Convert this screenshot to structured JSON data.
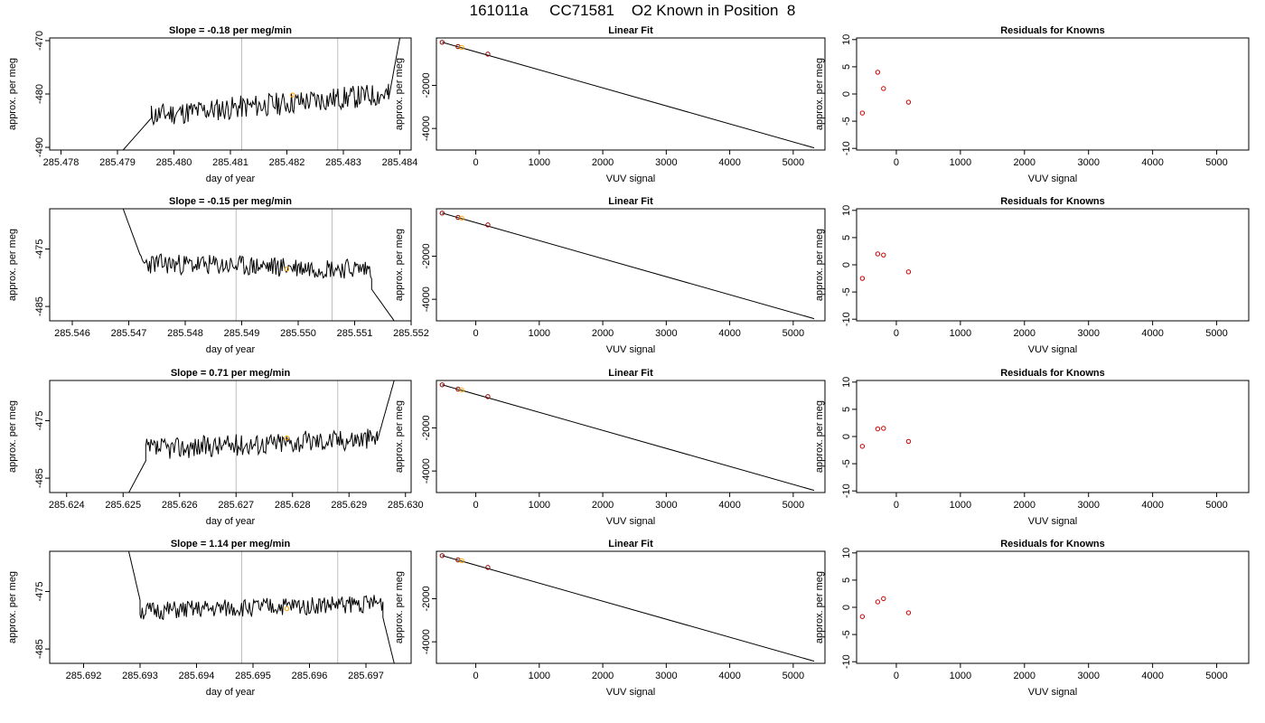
{
  "page": {
    "title": "161011a     CC71581    O2 Known in Position  8"
  },
  "chart_data": [
    {
      "type": "line",
      "title": "Slope =  -0.18  per meg/min",
      "xlabel": "day of year",
      "ylabel": "approx. per meg",
      "xlim": [
        285.4778,
        285.4842
      ],
      "ylim": [
        -490.5,
        -469.5
      ],
      "xticks": [
        285.478,
        285.479,
        285.48,
        285.481,
        285.482,
        285.483,
        285.484
      ],
      "xtick_labels": [
        "285.478",
        "285.479",
        "285.480",
        "285.481",
        "285.482",
        "285.483",
        "285.484"
      ],
      "yticks": [
        -490,
        -480,
        -470
      ],
      "ytick_labels": [
        "-490",
        "-480",
        "-470"
      ],
      "vlines": [
        285.4812,
        285.4829
      ],
      "vline_color": "#bebebe",
      "line_color": "#000000",
      "seed": 11,
      "segments": [
        {
          "x0": 285.4791,
          "x1": 285.4796,
          "y0": -490.5,
          "y1": -484.5
        },
        {
          "x0": 285.4796,
          "x1": 285.4838,
          "y0": -484.0,
          "y1": -480.0
        },
        {
          "x0": 285.4838,
          "x1": 285.484,
          "y0": -481.0,
          "y1": -469.5
        }
      ],
      "noise": 2.2,
      "points": [
        {
          "x": 285.4821,
          "y": -480.2,
          "color": "#ffa500"
        }
      ]
    },
    {
      "type": "scatter",
      "title": "Linear Fit",
      "xlabel": "VUV signal",
      "ylabel": "approx. per meg",
      "xlim": [
        -620,
        5500
      ],
      "ylim": [
        -5000,
        200
      ],
      "xticks": [
        0,
        1000,
        2000,
        3000,
        4000,
        5000
      ],
      "xtick_labels": [
        "0",
        "1000",
        "2000",
        "3000",
        "4000",
        "5000"
      ],
      "yticks": [
        -4000,
        -2000
      ],
      "ytick_labels": [
        "-4000",
        "-2000"
      ],
      "fit_line": {
        "x": [
          -530,
          5330
        ],
        "y": [
          0,
          -4900
        ]
      },
      "points": [
        {
          "x": -530,
          "y": 0,
          "color": "#8b0000"
        },
        {
          "x": -280,
          "y": -200,
          "color": "#8b0000"
        },
        {
          "x": -220,
          "y": -240,
          "color": "#ffa500"
        },
        {
          "x": 190,
          "y": -550,
          "color": "#8b0000"
        }
      ]
    },
    {
      "type": "scatter",
      "title": "Residuals for Knowns",
      "xlabel": "VUV signal",
      "ylabel": "approx. per meg",
      "xlim": [
        -620,
        5500
      ],
      "ylim": [
        -10.3,
        10.3
      ],
      "xticks": [
        0,
        1000,
        2000,
        3000,
        4000,
        5000
      ],
      "xtick_labels": [
        "0",
        "1000",
        "2000",
        "3000",
        "4000",
        "5000"
      ],
      "yticks": [
        -10,
        -5,
        0,
        5,
        10
      ],
      "ytick_labels": [
        "-10",
        "-5",
        "0",
        "5",
        "10"
      ],
      "points": [
        {
          "x": -530,
          "y": -3.5,
          "color": "#cd0000"
        },
        {
          "x": -290,
          "y": 4.0,
          "color": "#cd0000"
        },
        {
          "x": -200,
          "y": 1.0,
          "color": "#cd0000"
        },
        {
          "x": 190,
          "y": -1.5,
          "color": "#cd0000"
        }
      ]
    },
    {
      "type": "line",
      "title": "Slope =  -0.15  per meg/min",
      "xlabel": "day of year",
      "ylabel": "approx. per meg",
      "xlim": [
        285.5456,
        285.552
      ],
      "ylim": [
        -487.5,
        -468
      ],
      "xticks": [
        285.546,
        285.547,
        285.548,
        285.549,
        285.55,
        285.551,
        285.552
      ],
      "xtick_labels": [
        "285.546",
        "285.547",
        "285.548",
        "285.549",
        "285.550",
        "285.551",
        "285.552"
      ],
      "yticks": [
        -485,
        -475
      ],
      "ytick_labels": [
        "-485",
        "-475"
      ],
      "vlines": [
        285.5489,
        285.5506
      ],
      "vline_color": "#bebebe",
      "line_color": "#000000",
      "seed": 23,
      "segments": [
        {
          "x0": 285.5469,
          "x1": 285.5472,
          "y0": -468,
          "y1": -476
        },
        {
          "x0": 285.5472,
          "x1": 285.5513,
          "y0": -477.5,
          "y1": -478.5
        },
        {
          "x0": 285.5513,
          "x1": 285.5517,
          "y0": -482.0,
          "y1": -487.5
        }
      ],
      "noise": 1.8,
      "points": [
        {
          "x": 285.5498,
          "y": -478.5,
          "color": "#ffa500"
        }
      ]
    },
    {
      "type": "scatter",
      "title": "Linear Fit",
      "xlabel": "VUV signal",
      "ylabel": "approx. per meg",
      "xlim": [
        -620,
        5500
      ],
      "ylim": [
        -5000,
        200
      ],
      "xticks": [
        0,
        1000,
        2000,
        3000,
        4000,
        5000
      ],
      "xtick_labels": [
        "0",
        "1000",
        "2000",
        "3000",
        "4000",
        "5000"
      ],
      "yticks": [
        -4000,
        -2000
      ],
      "ytick_labels": [
        "-4000",
        "-2000"
      ],
      "fit_line": {
        "x": [
          -530,
          5330
        ],
        "y": [
          0,
          -4900
        ]
      },
      "points": [
        {
          "x": -530,
          "y": 0,
          "color": "#8b0000"
        },
        {
          "x": -280,
          "y": -200,
          "color": "#8b0000"
        },
        {
          "x": -220,
          "y": -240,
          "color": "#ffa500"
        },
        {
          "x": 190,
          "y": -550,
          "color": "#8b0000"
        }
      ]
    },
    {
      "type": "scatter",
      "title": "Residuals for Knowns",
      "xlabel": "VUV signal",
      "ylabel": "approx. per meg",
      "xlim": [
        -620,
        5500
      ],
      "ylim": [
        -10.3,
        10.3
      ],
      "xticks": [
        0,
        1000,
        2000,
        3000,
        4000,
        5000
      ],
      "xtick_labels": [
        "0",
        "1000",
        "2000",
        "3000",
        "4000",
        "5000"
      ],
      "yticks": [
        -10,
        -5,
        0,
        5,
        10
      ],
      "ytick_labels": [
        "-10",
        "-5",
        "0",
        "5",
        "10"
      ],
      "points": [
        {
          "x": -530,
          "y": -2.5,
          "color": "#cd0000"
        },
        {
          "x": -290,
          "y": 2.0,
          "color": "#cd0000"
        },
        {
          "x": -200,
          "y": 1.8,
          "color": "#cd0000"
        },
        {
          "x": 190,
          "y": -1.3,
          "color": "#cd0000"
        }
      ]
    },
    {
      "type": "line",
      "title": "Slope =  0.71  per meg/min",
      "xlabel": "day of year",
      "ylabel": "approx. per meg",
      "xlim": [
        285.6237,
        285.6301
      ],
      "ylim": [
        -487.5,
        -468
      ],
      "xticks": [
        285.624,
        285.625,
        285.626,
        285.627,
        285.628,
        285.629,
        285.63
      ],
      "xtick_labels": [
        "285.624",
        "285.625",
        "285.626",
        "285.627",
        "285.628",
        "285.629",
        "285.630"
      ],
      "yticks": [
        -485,
        -475
      ],
      "ytick_labels": [
        "-485",
        "-475"
      ],
      "vlines": [
        285.627,
        285.6288
      ],
      "vline_color": "#bebebe",
      "line_color": "#000000",
      "seed": 37,
      "segments": [
        {
          "x0": 285.6251,
          "x1": 285.6254,
          "y0": -487.5,
          "y1": -482.0
        },
        {
          "x0": 285.6254,
          "x1": 285.6295,
          "y0": -480.0,
          "y1": -478.0
        },
        {
          "x0": 285.6295,
          "x1": 285.6298,
          "y0": -478.5,
          "y1": -468
        }
      ],
      "noise": 1.9,
      "points": [
        {
          "x": 285.6279,
          "y": -478.0,
          "color": "#ffa500"
        }
      ]
    },
    {
      "type": "scatter",
      "title": "Linear Fit",
      "xlabel": "VUV signal",
      "ylabel": "approx. per meg",
      "xlim": [
        -620,
        5500
      ],
      "ylim": [
        -5000,
        200
      ],
      "xticks": [
        0,
        1000,
        2000,
        3000,
        4000,
        5000
      ],
      "xtick_labels": [
        "0",
        "1000",
        "2000",
        "3000",
        "4000",
        "5000"
      ],
      "yticks": [
        -4000,
        -2000
      ],
      "ytick_labels": [
        "-4000",
        "-2000"
      ],
      "fit_line": {
        "x": [
          -530,
          5330
        ],
        "y": [
          0,
          -4900
        ]
      },
      "points": [
        {
          "x": -530,
          "y": 0,
          "color": "#8b0000"
        },
        {
          "x": -280,
          "y": -200,
          "color": "#8b0000"
        },
        {
          "x": -220,
          "y": -240,
          "color": "#ffa500"
        },
        {
          "x": 190,
          "y": -550,
          "color": "#8b0000"
        }
      ]
    },
    {
      "type": "scatter",
      "title": "Residuals for Knowns",
      "xlabel": "VUV signal",
      "ylabel": "approx. per meg",
      "xlim": [
        -620,
        5500
      ],
      "ylim": [
        -10.3,
        10.3
      ],
      "xticks": [
        0,
        1000,
        2000,
        3000,
        4000,
        5000
      ],
      "xtick_labels": [
        "0",
        "1000",
        "2000",
        "3000",
        "4000",
        "5000"
      ],
      "yticks": [
        -10,
        -5,
        0,
        5,
        10
      ],
      "ytick_labels": [
        "-10",
        "-5",
        "0",
        "5",
        "10"
      ],
      "points": [
        {
          "x": -530,
          "y": -1.8,
          "color": "#cd0000"
        },
        {
          "x": -290,
          "y": 1.4,
          "color": "#cd0000"
        },
        {
          "x": -200,
          "y": 1.5,
          "color": "#cd0000"
        },
        {
          "x": 190,
          "y": -0.9,
          "color": "#cd0000"
        }
      ]
    },
    {
      "type": "line",
      "title": "Slope =  1.14  per meg/min",
      "xlabel": "day of year",
      "ylabel": "approx. per meg",
      "xlim": [
        285.6914,
        285.6978
      ],
      "ylim": [
        -487.5,
        -468
      ],
      "xticks": [
        285.692,
        285.693,
        285.694,
        285.695,
        285.696,
        285.697
      ],
      "xtick_labels": [
        "285.692",
        "285.693",
        "285.694",
        "285.695",
        "285.696",
        "285.697"
      ],
      "yticks": [
        -485,
        -475
      ],
      "ytick_labels": [
        "-485",
        "-475"
      ],
      "vlines": [
        285.6948,
        285.6965
      ],
      "vline_color": "#bebebe",
      "line_color": "#000000",
      "seed": 51,
      "segments": [
        {
          "x0": 285.6928,
          "x1": 285.693,
          "y0": -468,
          "y1": -476.5
        },
        {
          "x0": 285.693,
          "x1": 285.6973,
          "y0": -478.5,
          "y1": -477.0
        },
        {
          "x0": 285.6973,
          "x1": 285.6975,
          "y0": -479.5,
          "y1": -487.5
        }
      ],
      "noise": 1.6,
      "points": [
        {
          "x": 285.6956,
          "y": -478.0,
          "color": "#ffa500"
        }
      ]
    },
    {
      "type": "scatter",
      "title": "Linear Fit",
      "xlabel": "VUV signal",
      "ylabel": "approx. per meg",
      "xlim": [
        -620,
        5500
      ],
      "ylim": [
        -5000,
        200
      ],
      "xticks": [
        0,
        1000,
        2000,
        3000,
        4000,
        5000
      ],
      "xtick_labels": [
        "0",
        "1000",
        "2000",
        "3000",
        "4000",
        "5000"
      ],
      "yticks": [
        -4000,
        -2000
      ],
      "ytick_labels": [
        "-4000",
        "-2000"
      ],
      "fit_line": {
        "x": [
          -530,
          5330
        ],
        "y": [
          0,
          -4900
        ]
      },
      "points": [
        {
          "x": -530,
          "y": 0,
          "color": "#8b0000"
        },
        {
          "x": -280,
          "y": -200,
          "color": "#8b0000"
        },
        {
          "x": -220,
          "y": -240,
          "color": "#ffa500"
        },
        {
          "x": 190,
          "y": -550,
          "color": "#8b0000"
        }
      ]
    },
    {
      "type": "scatter",
      "title": "Residuals for Knowns",
      "xlabel": "VUV signal",
      "ylabel": "approx. per meg",
      "xlim": [
        -620,
        5500
      ],
      "ylim": [
        -10.3,
        10.3
      ],
      "xticks": [
        0,
        1000,
        2000,
        3000,
        4000,
        5000
      ],
      "xtick_labels": [
        "0",
        "1000",
        "2000",
        "3000",
        "4000",
        "5000"
      ],
      "yticks": [
        -10,
        -5,
        0,
        5,
        10
      ],
      "ytick_labels": [
        "-10",
        "-5",
        "0",
        "5",
        "10"
      ],
      "points": [
        {
          "x": -530,
          "y": -1.7,
          "color": "#cd0000"
        },
        {
          "x": -290,
          "y": 1.0,
          "color": "#cd0000"
        },
        {
          "x": -200,
          "y": 1.6,
          "color": "#cd0000"
        },
        {
          "x": 190,
          "y": -1.0,
          "color": "#cd0000"
        }
      ]
    }
  ]
}
